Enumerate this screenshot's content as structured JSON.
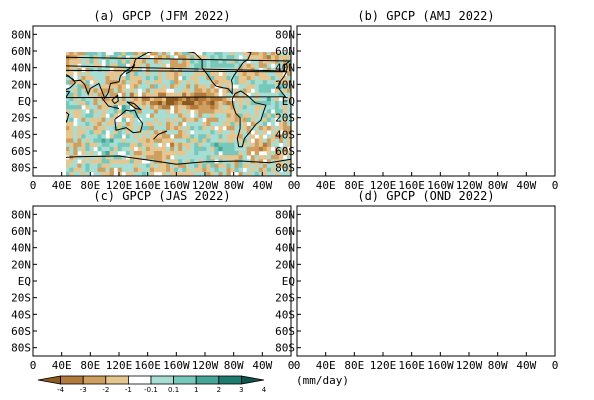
{
  "chart_data": {
    "type": "heatmap",
    "variable_label": "GPCP",
    "panels": [
      {
        "title": "(a) GPCP (JFM 2022)"
      },
      {
        "title": "(b) GPCP (AMJ 2022)"
      },
      {
        "title": "(c) GPCP (JAS 2022)"
      },
      {
        "title": "(d) GPCP (OND 2022)"
      }
    ],
    "x_tick_labels": [
      "0",
      "40E",
      "80E",
      "120E",
      "160E",
      "160W",
      "120W",
      "80W",
      "40W",
      "0"
    ],
    "y_tick_labels": [
      "80N",
      "60N",
      "40N",
      "20N",
      "EQ",
      "20S",
      "40S",
      "60S",
      "80S"
    ],
    "xlim_lon": [
      0,
      360
    ],
    "ylim_lat": [
      -90,
      90
    ],
    "colorbar": {
      "tick_labels": [
        "-4",
        "-3",
        "-2",
        "-1",
        "-0.1",
        "0.1",
        "1",
        "2",
        "3",
        "4"
      ],
      "unit": "(mm/day)",
      "colors": [
        "#8c5a1e",
        "#b27a3c",
        "#cf9f5f",
        "#e6c690",
        "#ffffff",
        "#a8ddd3",
        "#77c8ba",
        "#45a597",
        "#1e7b70",
        "#0b564e"
      ]
    }
  }
}
